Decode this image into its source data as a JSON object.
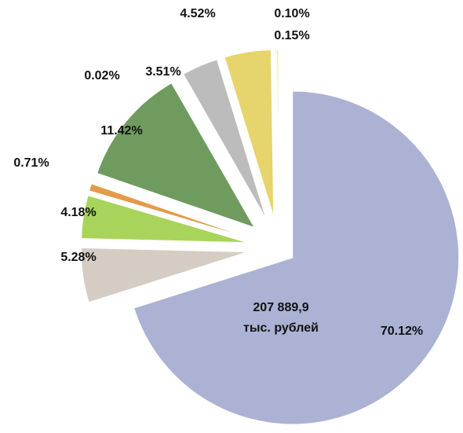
{
  "chart_data": {
    "type": "pie",
    "values": [
      70.12,
      5.28,
      4.18,
      0.71,
      11.42,
      0.02,
      3.51,
      4.52,
      0.1,
      0.15
    ],
    "value_labels": [
      "70.12%",
      "5.28%",
      "4.18%",
      "0.71%",
      "11.42%",
      "0.02%",
      "3.51%",
      "4.52%",
      "0.10%",
      "0.15%"
    ],
    "colors": [
      "#abb2d3",
      "#d5cdc4",
      "#a9d45c",
      "#e39b4a",
      "#6f9b5f",
      "#8fb07a",
      "#bcbcbc",
      "#e6d46c",
      "#e9da80",
      "#eddf8c"
    ],
    "center_label": [
      "207 889,9",
      "тыс. рублей"
    ]
  }
}
